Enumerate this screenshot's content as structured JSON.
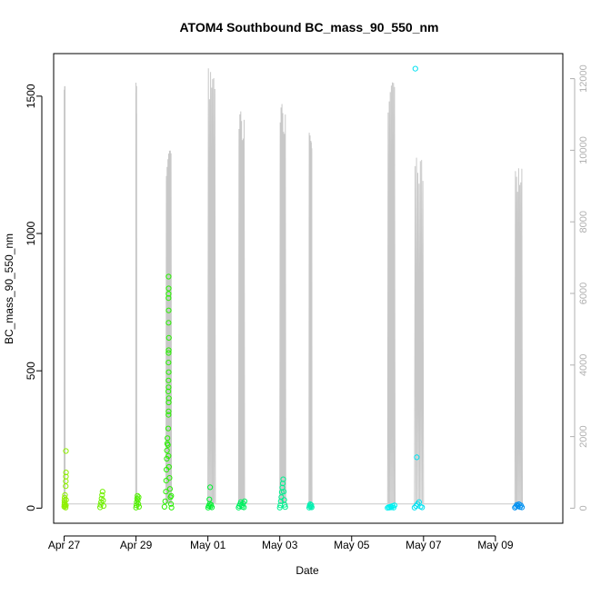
{
  "chart_data": {
    "type": "scatter",
    "title": "ATOM4 Southbound BC_mass_90_550_nm",
    "xlabel": "Date",
    "ylabel": "BC_mass_90_550_nm",
    "xlim": [
      "2018-04-26T17:00",
      "2018-05-10T21:00"
    ],
    "ylim": [
      -55,
      1655
    ],
    "y2lim": [
      -420,
      12700
    ],
    "grid": false,
    "legend": "none",
    "x_ticks": [
      {
        "date": "2018-04-27",
        "label": "Apr 27"
      },
      {
        "date": "2018-04-29",
        "label": "Apr 29"
      },
      {
        "date": "2018-05-01",
        "label": "May 01"
      },
      {
        "date": "2018-05-03",
        "label": "May 03"
      },
      {
        "date": "2018-05-05",
        "label": "May 05"
      },
      {
        "date": "2018-05-07",
        "label": "May 07"
      },
      {
        "date": "2018-05-09",
        "label": "May 09"
      }
    ],
    "y_ticks": [
      0,
      500,
      1000,
      1500
    ],
    "y2_ticks": [
      0,
      2000,
      4000,
      6000,
      8000,
      10000,
      12000
    ],
    "altitude_profile": {
      "color": "#c8c8c8",
      "flights": [
        {
          "start": "2018-04-27T00:00",
          "end": "2018-04-27T00:40",
          "peak": 11800
        },
        {
          "start": "2018-04-28T23:50",
          "end": "2018-04-29T00:30",
          "peak": 11900
        },
        {
          "start": "2018-04-29T20:00",
          "end": "2018-04-29T23:40",
          "peak": 10000
        },
        {
          "start": "2018-05-01T00:00",
          "end": "2018-05-01T05:00",
          "peak": 12300
        },
        {
          "start": "2018-05-01T20:30",
          "end": "2018-05-02T00:30",
          "peak": 11100
        },
        {
          "start": "2018-05-03T00:00",
          "end": "2018-05-03T04:00",
          "peak": 11300
        },
        {
          "start": "2018-05-03T19:30",
          "end": "2018-05-03T21:30",
          "peak": 10500
        },
        {
          "start": "2018-05-06T00:00",
          "end": "2018-05-06T05:00",
          "peak": 11900
        },
        {
          "start": "2018-05-06T18:00",
          "end": "2018-05-07T00:00",
          "peak": 9800
        },
        {
          "start": "2018-05-09T13:00",
          "end": "2018-05-09T18:00",
          "peak": 9500
        }
      ]
    },
    "series": [
      {
        "color": "#8ff000",
        "points": [
          {
            "x": "2018-04-27T00:05",
            "y": 5
          },
          {
            "x": "2018-04-27T00:10",
            "y": 12
          },
          {
            "x": "2018-04-27T00:12",
            "y": 20
          },
          {
            "x": "2018-04-27T00:15",
            "y": 28
          },
          {
            "x": "2018-04-27T00:20",
            "y": 38
          },
          {
            "x": "2018-04-27T00:25",
            "y": 15
          },
          {
            "x": "2018-04-27T00:30",
            "y": 8
          },
          {
            "x": "2018-04-27T00:35",
            "y": 48
          },
          {
            "x": "2018-04-27T01:00",
            "y": 2
          },
          {
            "x": "2018-04-27T01:10",
            "y": 10
          },
          {
            "x": "2018-04-27T01:20",
            "y": 30
          },
          {
            "x": "2018-04-27T01:05",
            "y": 80
          },
          {
            "x": "2018-04-27T01:08",
            "y": 98
          },
          {
            "x": "2018-04-27T01:12",
            "y": 115
          },
          {
            "x": "2018-04-27T01:15",
            "y": 130
          },
          {
            "x": "2018-04-27T01:10",
            "y": 208
          }
        ]
      },
      {
        "color": "#70f000",
        "points": [
          {
            "x": "2018-04-28T00:00",
            "y": 3
          },
          {
            "x": "2018-04-28T00:20",
            "y": 12
          },
          {
            "x": "2018-04-28T00:40",
            "y": 22
          },
          {
            "x": "2018-04-28T01:00",
            "y": 35
          },
          {
            "x": "2018-04-28T01:20",
            "y": 48
          },
          {
            "x": "2018-04-28T01:40",
            "y": 60
          },
          {
            "x": "2018-04-28T02:00",
            "y": 28
          },
          {
            "x": "2018-04-28T02:20",
            "y": 8
          }
        ]
      },
      {
        "color": "#50f000",
        "points": [
          {
            "x": "2018-04-29T00:00",
            "y": 2
          },
          {
            "x": "2018-04-29T00:15",
            "y": 10
          },
          {
            "x": "2018-04-29T00:30",
            "y": 22
          },
          {
            "x": "2018-04-29T00:45",
            "y": 35
          },
          {
            "x": "2018-04-29T01:00",
            "y": 45
          },
          {
            "x": "2018-04-29T01:15",
            "y": 30
          },
          {
            "x": "2018-04-29T01:30",
            "y": 15
          },
          {
            "x": "2018-04-29T01:45",
            "y": 40
          },
          {
            "x": "2018-04-29T02:00",
            "y": 5
          }
        ]
      },
      {
        "color": "#28f000",
        "points": [
          {
            "x": "2018-04-29T19:00",
            "y": 5
          },
          {
            "x": "2018-04-29T19:30",
            "y": 25
          },
          {
            "x": "2018-04-29T20:00",
            "y": 60
          },
          {
            "x": "2018-04-29T20:10",
            "y": 100
          },
          {
            "x": "2018-04-29T20:20",
            "y": 140
          },
          {
            "x": "2018-04-29T20:30",
            "y": 180
          },
          {
            "x": "2018-04-29T20:40",
            "y": 210
          },
          {
            "x": "2018-04-29T20:50",
            "y": 235
          },
          {
            "x": "2018-04-29T21:00",
            "y": 255
          },
          {
            "x": "2018-04-29T21:20",
            "y": 230
          },
          {
            "x": "2018-04-29T21:40",
            "y": 190
          },
          {
            "x": "2018-04-29T22:00",
            "y": 150
          },
          {
            "x": "2018-04-29T22:20",
            "y": 110
          },
          {
            "x": "2018-04-29T22:40",
            "y": 70
          },
          {
            "x": "2018-04-29T23:00",
            "y": 40
          },
          {
            "x": "2018-04-29T23:20",
            "y": 15
          },
          {
            "x": "2018-04-29T23:40",
            "y": 2
          },
          {
            "x": "2018-04-29T23:30",
            "y": 45
          },
          {
            "x": "2018-04-29T21:30",
            "y": 290
          },
          {
            "x": "2018-04-29T21:40",
            "y": 340
          },
          {
            "x": "2018-04-29T21:45",
            "y": 352
          },
          {
            "x": "2018-04-29T21:50",
            "y": 385
          },
          {
            "x": "2018-04-29T21:55",
            "y": 400
          },
          {
            "x": "2018-04-29T21:35",
            "y": 425
          },
          {
            "x": "2018-04-29T21:45",
            "y": 440
          },
          {
            "x": "2018-04-29T21:40",
            "y": 465
          },
          {
            "x": "2018-04-29T21:50",
            "y": 495
          },
          {
            "x": "2018-04-29T21:40",
            "y": 530
          },
          {
            "x": "2018-04-29T21:45",
            "y": 565
          },
          {
            "x": "2018-04-29T21:50",
            "y": 575
          },
          {
            "x": "2018-04-29T21:55",
            "y": 620
          },
          {
            "x": "2018-04-29T21:45",
            "y": 675
          },
          {
            "x": "2018-04-29T21:50",
            "y": 720
          },
          {
            "x": "2018-04-29T21:40",
            "y": 765
          },
          {
            "x": "2018-04-29T21:45",
            "y": 780
          },
          {
            "x": "2018-04-29T21:50",
            "y": 800
          },
          {
            "x": "2018-04-29T21:45",
            "y": 843
          }
        ]
      },
      {
        "color": "#00f030",
        "points": [
          {
            "x": "2018-05-01T00:10",
            "y": 2
          },
          {
            "x": "2018-05-01T00:40",
            "y": 8
          },
          {
            "x": "2018-05-01T01:10",
            "y": 15
          },
          {
            "x": "2018-05-01T01:40",
            "y": 6
          },
          {
            "x": "2018-05-01T02:10",
            "y": 12
          },
          {
            "x": "2018-05-01T02:40",
            "y": 3
          },
          {
            "x": "2018-05-01T01:00",
            "y": 32
          },
          {
            "x": "2018-05-01T01:30",
            "y": 76
          }
        ]
      },
      {
        "color": "#00f060",
        "points": [
          {
            "x": "2018-05-01T20:30",
            "y": 2
          },
          {
            "x": "2018-05-01T21:00",
            "y": 8
          },
          {
            "x": "2018-05-01T21:30",
            "y": 14
          },
          {
            "x": "2018-05-01T22:00",
            "y": 22
          },
          {
            "x": "2018-05-01T22:30",
            "y": 10
          },
          {
            "x": "2018-05-01T23:00",
            "y": 5
          },
          {
            "x": "2018-05-01T23:30",
            "y": 18
          },
          {
            "x": "2018-05-02T00:00",
            "y": 3
          },
          {
            "x": "2018-05-02T00:30",
            "y": 25
          }
        ]
      },
      {
        "color": "#00f090",
        "points": [
          {
            "x": "2018-05-03T00:00",
            "y": 2
          },
          {
            "x": "2018-05-03T00:20",
            "y": 10
          },
          {
            "x": "2018-05-03T00:40",
            "y": 25
          },
          {
            "x": "2018-05-03T01:00",
            "y": 40
          },
          {
            "x": "2018-05-03T01:20",
            "y": 58
          },
          {
            "x": "2018-05-03T01:40",
            "y": 75
          },
          {
            "x": "2018-05-03T02:00",
            "y": 90
          },
          {
            "x": "2018-05-03T02:20",
            "y": 105
          },
          {
            "x": "2018-05-03T02:40",
            "y": 60
          },
          {
            "x": "2018-05-03T03:00",
            "y": 30
          },
          {
            "x": "2018-05-03T03:20",
            "y": 12
          },
          {
            "x": "2018-05-03T03:40",
            "y": 4
          }
        ]
      },
      {
        "color": "#00f0b0",
        "points": [
          {
            "x": "2018-05-03T19:40",
            "y": 2
          },
          {
            "x": "2018-05-03T20:00",
            "y": 8
          },
          {
            "x": "2018-05-03T20:20",
            "y": 14
          },
          {
            "x": "2018-05-03T20:40",
            "y": 5
          },
          {
            "x": "2018-05-03T21:00",
            "y": 11
          },
          {
            "x": "2018-05-03T21:20",
            "y": 3
          }
        ]
      },
      {
        "color": "#00f0f0",
        "points": [
          {
            "x": "2018-05-06T00:00",
            "y": 1
          },
          {
            "x": "2018-05-06T00:40",
            "y": 4
          },
          {
            "x": "2018-05-06T01:20",
            "y": 2
          },
          {
            "x": "2018-05-06T02:00",
            "y": 6
          },
          {
            "x": "2018-05-06T02:40",
            "y": 3
          },
          {
            "x": "2018-05-06T03:20",
            "y": 8
          },
          {
            "x": "2018-05-06T04:00",
            "y": 2
          },
          {
            "x": "2018-05-06T04:40",
            "y": 10
          }
        ]
      },
      {
        "color": "#00e0f0",
        "points": [
          {
            "x": "2018-05-06T18:00",
            "y": 2
          },
          {
            "x": "2018-05-06T19:00",
            "y": 8
          },
          {
            "x": "2018-05-06T20:00",
            "y": 15
          },
          {
            "x": "2018-05-06T21:00",
            "y": 22
          },
          {
            "x": "2018-05-06T22:00",
            "y": 6
          },
          {
            "x": "2018-05-06T23:00",
            "y": 3
          },
          {
            "x": "2018-05-06T19:30",
            "y": 185
          },
          {
            "x": "2018-05-06T18:30",
            "y": 1600
          }
        ]
      },
      {
        "color": "#0090f0",
        "points": [
          {
            "x": "2018-05-09T13:00",
            "y": 2
          },
          {
            "x": "2018-05-09T13:40",
            "y": 6
          },
          {
            "x": "2018-05-09T14:20",
            "y": 12
          },
          {
            "x": "2018-05-09T15:00",
            "y": 8
          },
          {
            "x": "2018-05-09T15:40",
            "y": 14
          },
          {
            "x": "2018-05-09T16:20",
            "y": 4
          },
          {
            "x": "2018-05-09T17:00",
            "y": 10
          },
          {
            "x": "2018-05-09T17:40",
            "y": 3
          }
        ]
      }
    ]
  }
}
